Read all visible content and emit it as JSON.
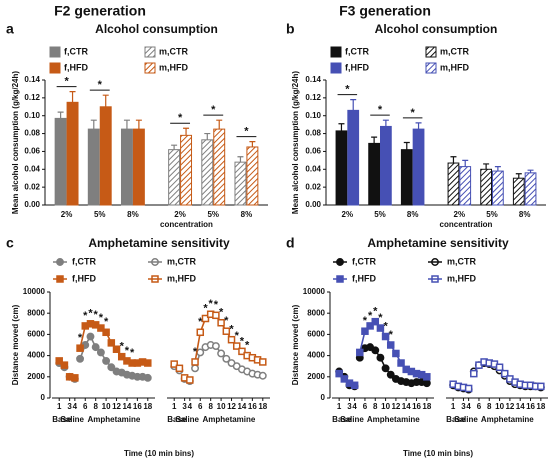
{
  "headings": [
    "F2 generation",
    "F3 generation"
  ],
  "chart_data": [
    {
      "type": "bar",
      "panel": "a",
      "title": "Alcohol consumption",
      "y_label": "Mean alcohol consumption (g/kg/24h)",
      "x_label": "concentration",
      "categories": [
        "2%",
        "5%",
        "8%",
        "2%",
        "5%",
        "8%"
      ],
      "ylim": [
        0,
        0.14
      ],
      "yticks": [
        {
          "value": 0,
          "label": "0.00"
        },
        {
          "value": 0.02,
          "label": "0.02"
        },
        {
          "value": 0.04,
          "label": "0.04"
        },
        {
          "value": 0.06,
          "label": "0.06"
        },
        {
          "value": 0.08,
          "label": "0.08"
        },
        {
          "value": 0.1,
          "label": "0.10"
        },
        {
          "value": 0.12,
          "label": "0.12"
        },
        {
          "value": 0.14,
          "label": "0.14"
        }
      ],
      "series": [
        {
          "name": "f,CTR",
          "color": "#7f7f7f",
          "hatched": false,
          "values": [
            0.097,
            0.085,
            0.085,
            null,
            null,
            null
          ],
          "errors": [
            0.007,
            0.01,
            0.01,
            null,
            null,
            null
          ]
        },
        {
          "name": "f,HFD",
          "color": "#c65a16",
          "hatched": false,
          "values": [
            0.115,
            0.11,
            0.085,
            null,
            null,
            null
          ],
          "errors": [
            0.012,
            0.013,
            0.01,
            null,
            null,
            null
          ],
          "significance": [
            "*",
            "*",
            null,
            null,
            null,
            null
          ]
        },
        {
          "name": "m,CTR",
          "color": "#7f7f7f",
          "hatched": true,
          "values": [
            null,
            null,
            null,
            0.062,
            0.073,
            0.048
          ],
          "errors": [
            null,
            null,
            null,
            0.005,
            0.007,
            0.006
          ]
        },
        {
          "name": "m,HFD",
          "color": "#c65a16",
          "hatched": true,
          "values": [
            null,
            null,
            null,
            0.078,
            0.085,
            0.065
          ],
          "errors": [
            null,
            null,
            null,
            0.008,
            0.01,
            0.006
          ],
          "significance": [
            null,
            null,
            null,
            "*",
            "*",
            "*"
          ]
        }
      ]
    },
    {
      "type": "bar",
      "panel": "b",
      "title": "Alcohol consumption",
      "y_label": "Mean alcohol consumption (g/kg/24h)",
      "x_label": "concentration",
      "categories": [
        "2%",
        "5%",
        "8%",
        "2%",
        "5%",
        "8%"
      ],
      "ylim": [
        0,
        0.14
      ],
      "yticks": [
        {
          "value": 0,
          "label": "0.00"
        },
        {
          "value": 0.02,
          "label": "0.02"
        },
        {
          "value": 0.04,
          "label": "0.04"
        },
        {
          "value": 0.06,
          "label": "0.06"
        },
        {
          "value": 0.08,
          "label": "0.08"
        },
        {
          "value": 0.1,
          "label": "0.10"
        },
        {
          "value": 0.12,
          "label": "0.12"
        },
        {
          "value": 0.14,
          "label": "0.14"
        }
      ],
      "series": [
        {
          "name": "f,CTR",
          "color": "#111111",
          "hatched": false,
          "values": [
            0.083,
            0.069,
            0.062,
            null,
            null,
            null
          ],
          "errors": [
            0.008,
            0.007,
            0.008,
            null,
            null,
            null
          ]
        },
        {
          "name": "f,HFD",
          "color": "#4650b4",
          "hatched": false,
          "values": [
            0.106,
            0.088,
            0.085,
            null,
            null,
            null
          ],
          "errors": [
            0.012,
            0.007,
            0.007,
            null,
            null,
            null
          ],
          "significance": [
            "*",
            "*",
            "*",
            null,
            null,
            null
          ]
        },
        {
          "name": "m,CTR",
          "color": "#111111",
          "hatched": true,
          "values": [
            null,
            null,
            null,
            0.047,
            0.04,
            0.03
          ],
          "errors": [
            null,
            null,
            null,
            0.007,
            0.006,
            0.005
          ]
        },
        {
          "name": "m,HFD",
          "color": "#4650b4",
          "hatched": true,
          "values": [
            null,
            null,
            null,
            0.043,
            0.038,
            0.036
          ],
          "errors": [
            null,
            null,
            null,
            0.007,
            0.005,
            0.003
          ]
        }
      ]
    },
    {
      "type": "line",
      "panel": "c",
      "title": "Amphetamine sensitivity",
      "y_label": "Distance moved (cm)",
      "x_label": "Time (10 min bins)",
      "ylim": [
        0,
        10000
      ],
      "yticks": [
        0,
        2000,
        4000,
        6000,
        8000,
        10000
      ],
      "xlim": [
        0,
        19
      ],
      "xticks": [
        1,
        3,
        4,
        6,
        8,
        10,
        12,
        14,
        16,
        18
      ],
      "phases": [
        {
          "label": "Base",
          "from": 1,
          "to": 2
        },
        {
          "label": "Saline",
          "from": 3,
          "to": 4
        },
        {
          "label": "Amphetamine",
          "from": 5,
          "to": 18
        }
      ],
      "x": [
        1,
        2,
        3,
        4,
        5,
        6,
        7,
        8,
        9,
        10,
        11,
        12,
        13,
        14,
        15,
        16,
        17,
        18
      ],
      "blocks": [
        {
          "series": [
            {
              "name": "f,CTR",
              "color": "#7f7f7f",
              "marker": "circle",
              "filled": true,
              "values": [
                3300,
                2900,
                2000,
                1800,
                3700,
                5000,
                5800,
                4800,
                4300,
                3500,
                2900,
                2500,
                2400,
                2200,
                2100,
                2000,
                2000,
                1900
              ]
            },
            {
              "name": "f,HFD",
              "color": "#c65a16",
              "marker": "square",
              "filled": true,
              "values": [
                3500,
                3100,
                2000,
                1900,
                4700,
                6800,
                7000,
                6900,
                6600,
                6200,
                5200,
                4600,
                3900,
                3500,
                3300,
                3300,
                3400,
                3300
              ],
              "significance": [
                null,
                null,
                null,
                null,
                "*",
                "*",
                "*",
                "*",
                "*",
                "*",
                null,
                null,
                "*",
                "*",
                "*",
                null,
                null,
                null
              ]
            }
          ]
        },
        {
          "series": [
            {
              "name": "m,CTR",
              "color": "#7f7f7f",
              "marker": "circle",
              "filled": false,
              "values": [
                3000,
                2600,
                1800,
                1600,
                2800,
                4300,
                4800,
                5000,
                4900,
                4200,
                3700,
                3300,
                3000,
                2700,
                2500,
                2300,
                2200,
                2100
              ]
            },
            {
              "name": "m,HFD",
              "color": "#c65a16",
              "marker": "square",
              "filled": false,
              "values": [
                3200,
                2800,
                1900,
                1700,
                3400,
                6200,
                7500,
                7900,
                7800,
                7100,
                6300,
                5500,
                4900,
                4400,
                4000,
                3800,
                3600,
                3400
              ],
              "significance": [
                null,
                null,
                null,
                null,
                "*",
                "*",
                "*",
                "*",
                "*",
                "*",
                "*",
                "*",
                "*",
                "*",
                "*",
                null,
                null,
                null
              ]
            }
          ]
        }
      ]
    },
    {
      "type": "line",
      "panel": "d",
      "title": "Amphetamine sensitivity",
      "y_label": "Distance moved (cm)",
      "x_label": "Time (10 min bins)",
      "ylim": [
        0,
        10000
      ],
      "yticks": [
        0,
        2000,
        4000,
        6000,
        8000,
        10000
      ],
      "xlim": [
        0,
        19
      ],
      "xticks": [
        1,
        3,
        4,
        6,
        8,
        10,
        12,
        14,
        16,
        18
      ],
      "phases": [
        {
          "label": "Base",
          "from": 1,
          "to": 2
        },
        {
          "label": "Saline",
          "from": 3,
          "to": 4
        },
        {
          "label": "Amphetamine",
          "from": 5,
          "to": 18
        }
      ],
      "x": [
        1,
        2,
        3,
        4,
        5,
        6,
        7,
        8,
        9,
        10,
        11,
        12,
        13,
        14,
        15,
        16,
        17,
        18
      ],
      "blocks": [
        {
          "series": [
            {
              "name": "f,CTR",
              "color": "#111111",
              "marker": "circle",
              "filled": true,
              "values": [
                2500,
                2000,
                1200,
                1100,
                3800,
                4700,
                4800,
                4500,
                3800,
                2800,
                2200,
                1800,
                1600,
                1500,
                1400,
                1500,
                1500,
                1400
              ]
            },
            {
              "name": "f,HFD",
              "color": "#4650b4",
              "marker": "square",
              "filled": true,
              "values": [
                2300,
                1800,
                1400,
                1200,
                4300,
                6300,
                6800,
                7200,
                6600,
                5800,
                5000,
                4200,
                3300,
                2700,
                2500,
                2300,
                2200,
                2000
              ],
              "significance": [
                null,
                null,
                null,
                null,
                null,
                "*",
                "*",
                "*",
                "*",
                "*",
                "*",
                null,
                null,
                null,
                null,
                null,
                null,
                null
              ]
            }
          ]
        },
        {
          "series": [
            {
              "name": "m,CTR",
              "color": "#111111",
              "marker": "circle",
              "filled": false,
              "values": [
                1200,
                1000,
                900,
                800,
                2500,
                3100,
                3300,
                3200,
                3000,
                2600,
                2100,
                1600,
                1300,
                1200,
                1100,
                1100,
                1100,
                1000
              ]
            },
            {
              "name": "m,HFD",
              "color": "#4650b4",
              "marker": "square",
              "filled": false,
              "values": [
                1300,
                1100,
                1000,
                900,
                2300,
                3100,
                3400,
                3300,
                3200,
                2900,
                2300,
                1800,
                1500,
                1300,
                1200,
                1200,
                1100,
                1100
              ]
            }
          ]
        }
      ]
    }
  ]
}
